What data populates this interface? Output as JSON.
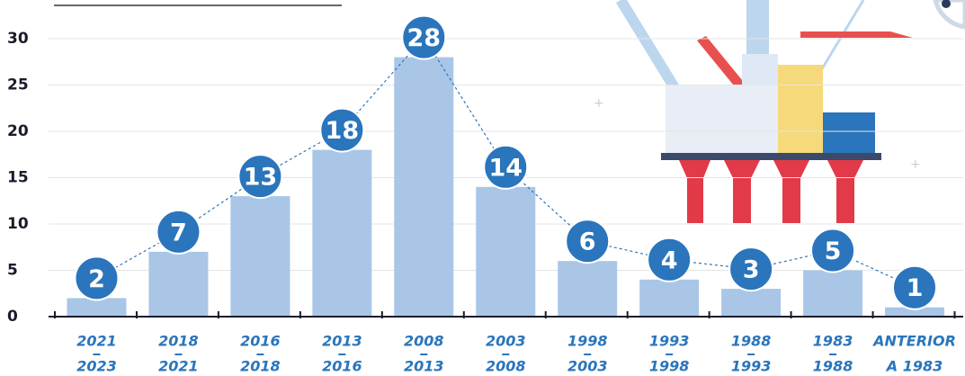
{
  "chart_data": {
    "type": "bar",
    "categories": [
      [
        "2021",
        "2023"
      ],
      [
        "2018",
        "2021"
      ],
      [
        "2016",
        "2018"
      ],
      [
        "2013",
        "2016"
      ],
      [
        "2008",
        "2013"
      ],
      [
        "2003",
        "2008"
      ],
      [
        "1998",
        "2003"
      ],
      [
        "1993",
        "1998"
      ],
      [
        "1988",
        "1993"
      ],
      [
        "1983",
        "1988"
      ],
      [
        "ANTERIOR",
        "A 1983"
      ]
    ],
    "values": [
      2,
      7,
      13,
      18,
      28,
      14,
      6,
      4,
      3,
      5,
      1
    ],
    "color": "#a9c6e7",
    "label_color": "#2a75bc",
    "ylim": [
      0,
      30
    ],
    "yticks": [
      0,
      5,
      10,
      15,
      20,
      25,
      30
    ],
    "grid": true
  }
}
